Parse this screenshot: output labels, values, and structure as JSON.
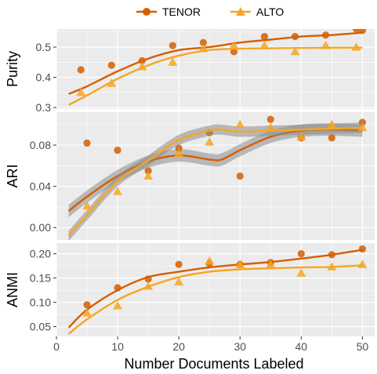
{
  "colors": {
    "tenor": "#D55E00",
    "alto": "#F5A623",
    "ribbon": "#8c8c8c",
    "panel_bg": "#EBEBEB",
    "grid": "#ffffff"
  },
  "legend": {
    "tenor": "TENOR",
    "alto": "ALTO"
  },
  "chart_data": [
    {
      "type": "scatter",
      "panel": "Purity",
      "ylabel": "Purity",
      "xlabel": "Number Documents Labeled",
      "xlim": [
        0,
        52
      ],
      "ylim": [
        0.295,
        0.56
      ],
      "yticks": [
        0.3,
        0.4,
        0.5
      ],
      "ytick_labels": [
        "0.3",
        "0.4",
        "0.5"
      ],
      "xticks": [
        0,
        10,
        20,
        30,
        40,
        50
      ],
      "xtick_labels": [
        "0",
        "10",
        "20",
        "30",
        "40",
        "50"
      ],
      "series": [
        {
          "name": "TENOR",
          "x": [
            4,
            9,
            14,
            19,
            24,
            29,
            34,
            39,
            44,
            49,
            50
          ],
          "y": [
            0.425,
            0.44,
            0.455,
            0.505,
            0.515,
            0.485,
            0.535,
            0.535,
            0.54,
            0.56,
            0.555
          ],
          "fit_x": [
            2,
            5,
            10,
            15,
            20,
            25,
            30,
            35,
            40,
            45,
            50
          ],
          "fit_y": [
            0.345,
            0.37,
            0.42,
            0.462,
            0.49,
            0.5,
            0.515,
            0.525,
            0.535,
            0.54,
            0.548
          ]
        },
        {
          "name": "ALTO",
          "x": [
            4,
            9,
            14,
            19,
            24,
            29,
            34,
            39,
            44,
            49
          ],
          "y": [
            0.35,
            0.38,
            0.435,
            0.45,
            0.495,
            0.505,
            0.505,
            0.485,
            0.505,
            0.5
          ],
          "fit_x": [
            2,
            5,
            10,
            15,
            20,
            25,
            30,
            35,
            40,
            45,
            50
          ],
          "fit_y": [
            0.308,
            0.34,
            0.395,
            0.44,
            0.472,
            0.49,
            0.495,
            0.496,
            0.497,
            0.498,
            0.498
          ]
        }
      ]
    },
    {
      "type": "scatter",
      "panel": "ARI",
      "ylabel": "ARI",
      "xlabel": "Number Documents Labeled",
      "xlim": [
        0,
        52
      ],
      "ylim": [
        -0.012,
        0.112
      ],
      "yticks": [
        0.0,
        0.04,
        0.08
      ],
      "ytick_labels": [
        "0.00",
        "0.04",
        "0.08"
      ],
      "xticks": [
        0,
        10,
        20,
        30,
        40,
        50
      ],
      "xtick_labels": [
        "0",
        "10",
        "20",
        "30",
        "40",
        "50"
      ],
      "series": [
        {
          "name": "TENOR",
          "x": [
            5,
            10,
            15,
            20,
            25,
            30,
            35,
            40,
            45,
            50
          ],
          "y": [
            0.082,
            0.075,
            0.055,
            0.077,
            0.092,
            0.05,
            0.105,
            0.087,
            0.087,
            0.102
          ],
          "fit_x": [
            2,
            5,
            10,
            15,
            20,
            25,
            27,
            30,
            35,
            40,
            45,
            50
          ],
          "fit_y": [
            0.016,
            0.03,
            0.05,
            0.064,
            0.07,
            0.066,
            0.066,
            0.075,
            0.088,
            0.094,
            0.095,
            0.094
          ],
          "band": 0.006
        },
        {
          "name": "ALTO",
          "x": [
            5,
            10,
            15,
            20,
            25,
            30,
            35,
            40,
            45,
            50
          ],
          "y": [
            0.021,
            0.035,
            0.05,
            0.072,
            0.083,
            0.1,
            0.097,
            0.088,
            0.1,
            0.097
          ],
          "fit_x": [
            2,
            5,
            10,
            15,
            20,
            25,
            27,
            30,
            35,
            40,
            45,
            50
          ],
          "fit_y": [
            -0.008,
            0.012,
            0.045,
            0.065,
            0.085,
            0.094,
            0.095,
            0.093,
            0.094,
            0.095,
            0.096,
            0.097
          ],
          "band": 0.005
        }
      ]
    },
    {
      "type": "scatter",
      "panel": "ANMI",
      "ylabel": "ANMI",
      "xlabel": "Number Documents Labeled",
      "xlim": [
        0,
        52
      ],
      "ylim": [
        0.03,
        0.222
      ],
      "yticks": [
        0.05,
        0.1,
        0.15,
        0.2
      ],
      "ytick_labels": [
        "0.05",
        "0.10",
        "0.15",
        "0.20"
      ],
      "xticks": [
        0,
        10,
        20,
        30,
        40,
        50
      ],
      "xtick_labels": [
        "0",
        "10",
        "20",
        "30",
        "40",
        "50"
      ],
      "series": [
        {
          "name": "TENOR",
          "x": [
            5,
            10,
            15,
            20,
            25,
            30,
            35,
            40,
            45,
            50
          ],
          "y": [
            0.095,
            0.13,
            0.148,
            0.178,
            0.18,
            0.178,
            0.182,
            0.2,
            0.198,
            0.21
          ],
          "fit_x": [
            2,
            5,
            10,
            15,
            20,
            25,
            30,
            35,
            40,
            45,
            50
          ],
          "fit_y": [
            0.048,
            0.085,
            0.125,
            0.152,
            0.163,
            0.172,
            0.178,
            0.183,
            0.19,
            0.198,
            0.208
          ]
        },
        {
          "name": "ALTO",
          "x": [
            5,
            10,
            15,
            20,
            25,
            30,
            35,
            40,
            45,
            50
          ],
          "y": [
            0.078,
            0.093,
            0.133,
            0.142,
            0.185,
            0.178,
            0.178,
            0.16,
            0.173,
            0.178
          ],
          "fit_x": [
            2,
            5,
            10,
            15,
            20,
            25,
            30,
            35,
            40,
            45,
            50
          ],
          "fit_y": [
            0.035,
            0.065,
            0.105,
            0.132,
            0.152,
            0.163,
            0.168,
            0.17,
            0.172,
            0.173,
            0.176
          ]
        }
      ]
    }
  ],
  "x_axis_title": "Number Documents Labeled"
}
